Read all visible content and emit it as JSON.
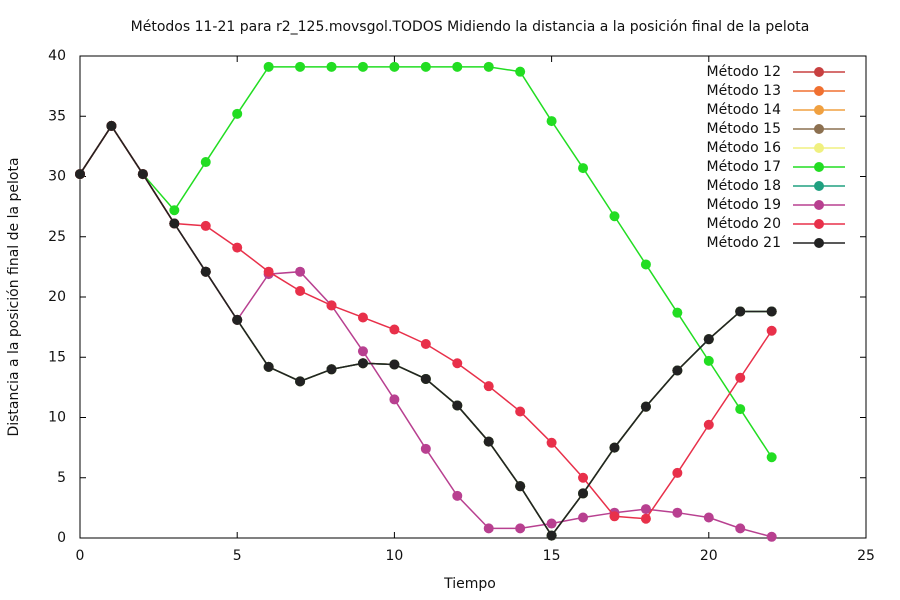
{
  "chart_data": {
    "type": "line",
    "title": "Métodos 11-21 para r2_125.movsgol.TODOS Midiendo la distancia a la posición final de la pelota",
    "xlabel": "Tiempo",
    "ylabel": "Distancia a la posición final de la pelota",
    "x": [
      0,
      1,
      2,
      3,
      4,
      5,
      6,
      7,
      8,
      9,
      10,
      11,
      12,
      13,
      14,
      15,
      16,
      17,
      18,
      19,
      20,
      21,
      22
    ],
    "xlim": [
      0,
      25
    ],
    "xticks": [
      0,
      5,
      10,
      15,
      20,
      25
    ],
    "ylim": [
      0,
      40
    ],
    "yticks": [
      0,
      5,
      10,
      15,
      20,
      25,
      30,
      35,
      40
    ],
    "legend": "top-right",
    "series": [
      {
        "name": "Método 12",
        "color": "#c84040",
        "values": [
          30.2,
          34.2,
          30.2,
          26.1,
          22.1,
          18.1,
          14.2,
          13.0,
          14.0,
          14.5,
          14.4,
          13.2,
          11.0,
          8.0,
          4.3,
          0.2,
          3.7,
          7.5,
          10.9,
          13.9,
          16.5,
          18.8,
          18.8
        ]
      },
      {
        "name": "Método 13",
        "color": "#f07030",
        "values": [
          30.2,
          34.2,
          30.2,
          26.1,
          22.1,
          18.1,
          14.2,
          13.0,
          14.0,
          14.5,
          14.4,
          13.2,
          11.0,
          8.0,
          4.3,
          0.2,
          3.7,
          7.5,
          10.9,
          13.9,
          16.5,
          18.8,
          18.8
        ]
      },
      {
        "name": "Método 14",
        "color": "#f0a040",
        "values": [
          30.2,
          34.2,
          30.2,
          26.1,
          22.1,
          18.1,
          14.2,
          13.0,
          14.0,
          14.5,
          14.4,
          13.2,
          11.0,
          8.0,
          4.3,
          0.2,
          3.7,
          7.5,
          10.9,
          13.9,
          16.5,
          18.8,
          18.8
        ]
      },
      {
        "name": "Método 15",
        "color": "#8c7050",
        "values": [
          30.2,
          34.2,
          30.2,
          26.1,
          22.1,
          18.1,
          14.2,
          13.0,
          14.0,
          14.5,
          14.4,
          13.2,
          11.0,
          8.0,
          4.3,
          0.2,
          3.7,
          7.5,
          10.9,
          13.9,
          16.5,
          18.8,
          18.8
        ]
      },
      {
        "name": "Método 16",
        "color": "#f0f080",
        "values": [
          30.2,
          34.2,
          30.2,
          26.1,
          22.1,
          18.1,
          14.2,
          13.0,
          14.0,
          14.5,
          14.4,
          13.2,
          11.0,
          8.0,
          4.3,
          0.2,
          3.7,
          7.5,
          10.9,
          13.9,
          16.5,
          18.8,
          18.8
        ]
      },
      {
        "name": "Método 17",
        "color": "#22dd22",
        "values": [
          30.2,
          34.2,
          30.2,
          27.2,
          31.2,
          35.2,
          39.1,
          39.1,
          39.1,
          39.1,
          39.1,
          39.1,
          39.1,
          39.1,
          38.7,
          34.6,
          30.7,
          26.7,
          22.7,
          18.7,
          14.7,
          10.7,
          6.7
        ]
      },
      {
        "name": "Método 18",
        "color": "#20a080",
        "values": [
          30.2,
          34.2,
          30.2,
          26.1,
          22.1,
          18.1,
          14.2,
          13.0,
          14.0,
          14.5,
          14.4,
          13.2,
          11.0,
          8.0,
          4.3,
          0.2,
          3.7,
          7.5,
          10.9,
          13.9,
          16.5,
          18.8,
          18.8
        ]
      },
      {
        "name": "Método 19",
        "color": "#b84090",
        "values": [
          30.2,
          34.2,
          30.2,
          26.1,
          22.1,
          18.1,
          21.9,
          22.1,
          19.3,
          15.5,
          11.5,
          7.4,
          3.5,
          0.8,
          0.8,
          1.2,
          1.7,
          2.1,
          2.4,
          2.1,
          1.7,
          0.8,
          0.1
        ]
      },
      {
        "name": "Método 20",
        "color": "#e8304a",
        "values": [
          30.2,
          34.2,
          30.2,
          26.1,
          25.9,
          24.1,
          22.1,
          20.5,
          19.3,
          18.3,
          17.3,
          16.1,
          14.5,
          12.6,
          10.5,
          7.9,
          5.0,
          1.8,
          1.6,
          5.4,
          9.4,
          13.3,
          17.2
        ]
      },
      {
        "name": "Método 21",
        "color": "#222222",
        "values": [
          30.2,
          34.2,
          30.2,
          26.1,
          22.1,
          18.1,
          14.2,
          13.0,
          14.0,
          14.5,
          14.4,
          13.2,
          11.0,
          8.0,
          4.3,
          0.2,
          3.7,
          7.5,
          10.9,
          13.9,
          16.5,
          18.8,
          18.8
        ]
      }
    ]
  }
}
